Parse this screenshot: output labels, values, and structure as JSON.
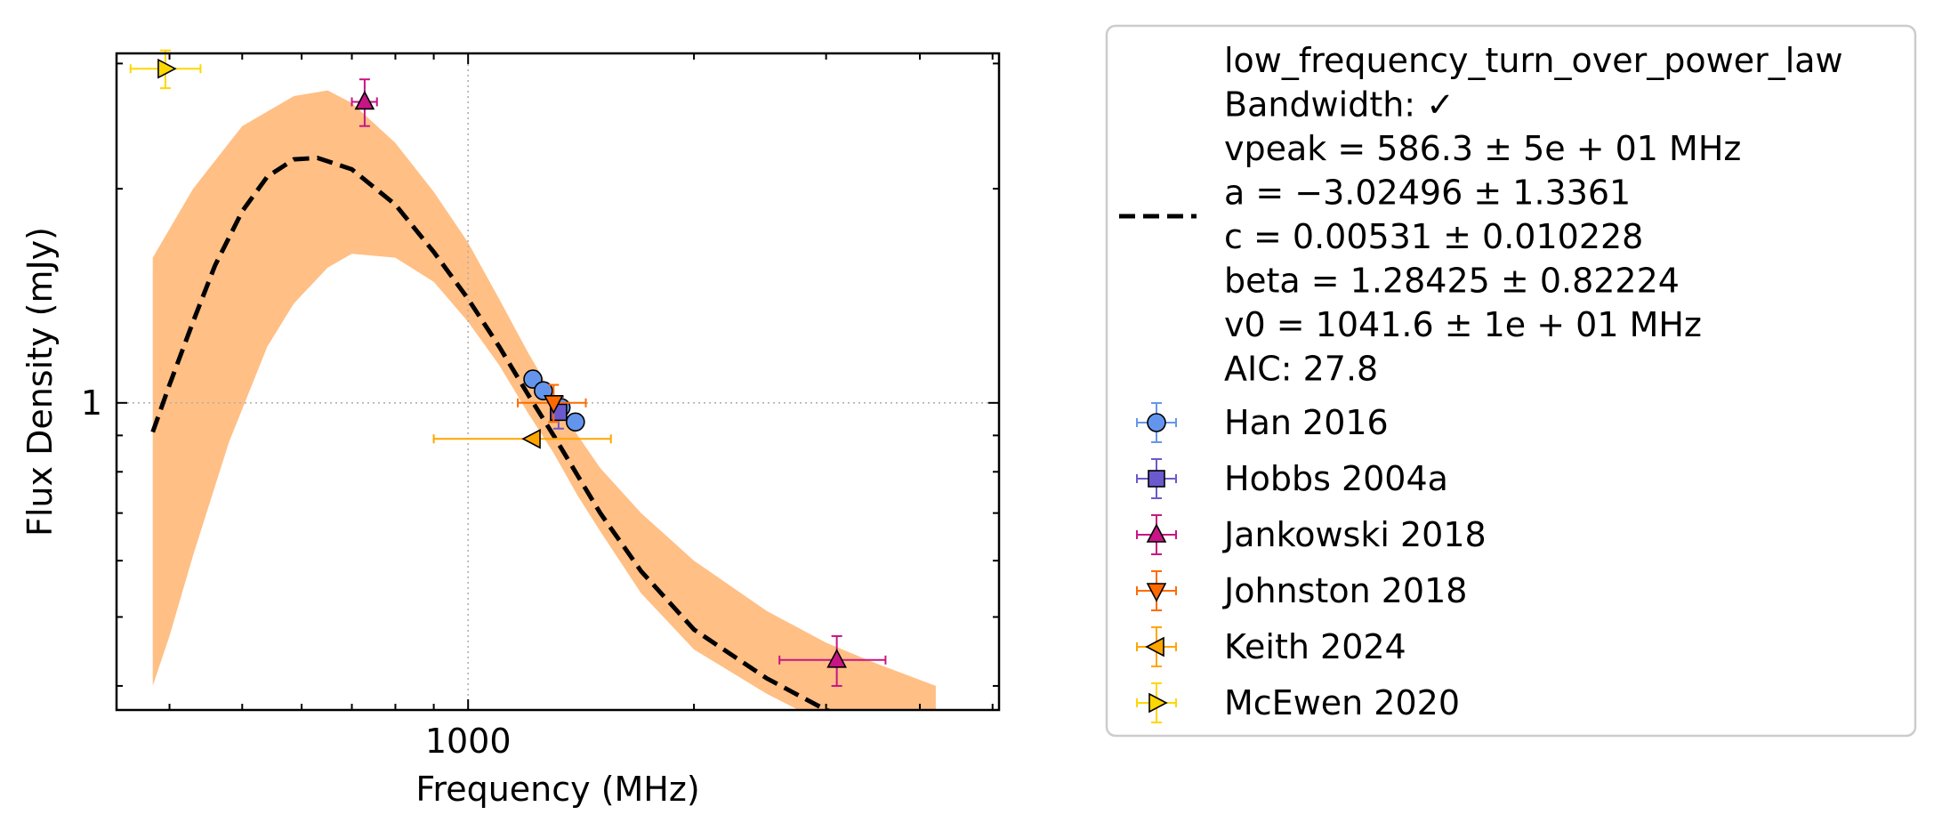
{
  "chart_data": {
    "type": "scatter",
    "xlabel": "Frequency (MHz)",
    "ylabel": "Flux Density (mJy)",
    "x_scale": "log",
    "y_scale": "log",
    "xlim": [
      340,
      5100
    ],
    "ylim": [
      0.37,
      3.1
    ],
    "x_tick_labels": [
      {
        "value": 1000,
        "label": "1000"
      }
    ],
    "y_tick_labels": [
      {
        "value": 1,
        "label": "1"
      }
    ],
    "grid": "dotted at labelled major ticks",
    "legend_position": "outside right",
    "fit": {
      "model": "low_frequency_turn_over_power_law",
      "legend_lines": [
        "low_frequency_turn_over_power_law",
        "Bandwidth: ✓",
        "vpeak = 586.3 ± 5e + 01 MHz",
        "a = −3.02496 ± 1.3361",
        "c = 0.00531 ± 0.010228",
        "beta = 1.28425 ± 0.82224",
        "v0 = 1041.6 ± 1e + 01 MHz",
        "AIC: 27.8"
      ],
      "curve": [
        [
          380,
          0.91
        ],
        [
          400,
          1.06
        ],
        [
          430,
          1.3
        ],
        [
          460,
          1.56
        ],
        [
          500,
          1.86
        ],
        [
          540,
          2.08
        ],
        [
          586,
          2.2
        ],
        [
          630,
          2.21
        ],
        [
          700,
          2.13
        ],
        [
          800,
          1.9
        ],
        [
          900,
          1.63
        ],
        [
          1000,
          1.4
        ],
        [
          1100,
          1.2
        ],
        [
          1200,
          1.03
        ],
        [
          1300,
          0.9
        ],
        [
          1400,
          0.79
        ],
        [
          1500,
          0.7
        ],
        [
          1700,
          0.58
        ],
        [
          2000,
          0.48
        ],
        [
          2500,
          0.41
        ],
        [
          3000,
          0.37
        ],
        [
          3500,
          0.35
        ],
        [
          3800,
          0.34
        ]
      ],
      "band_upper": [
        [
          380,
          1.6
        ],
        [
          430,
          2.0
        ],
        [
          500,
          2.45
        ],
        [
          586,
          2.7
        ],
        [
          650,
          2.75
        ],
        [
          700,
          2.64
        ],
        [
          800,
          2.32
        ],
        [
          900,
          1.98
        ],
        [
          1000,
          1.68
        ],
        [
          1100,
          1.4
        ],
        [
          1200,
          1.18
        ],
        [
          1300,
          1.02
        ],
        [
          1400,
          0.9
        ],
        [
          1500,
          0.81
        ],
        [
          1700,
          0.7
        ],
        [
          2000,
          0.6
        ],
        [
          2500,
          0.51
        ],
        [
          3000,
          0.46
        ],
        [
          3500,
          0.43
        ],
        [
          4200,
          0.4
        ]
      ],
      "band_lower": [
        [
          380,
          0.4
        ],
        [
          400,
          0.47
        ],
        [
          430,
          0.61
        ],
        [
          480,
          0.88
        ],
        [
          540,
          1.2
        ],
        [
          586,
          1.38
        ],
        [
          650,
          1.55
        ],
        [
          700,
          1.62
        ],
        [
          800,
          1.6
        ],
        [
          900,
          1.48
        ],
        [
          1000,
          1.3
        ],
        [
          1100,
          1.13
        ],
        [
          1200,
          0.97
        ],
        [
          1300,
          0.85
        ],
        [
          1400,
          0.74
        ],
        [
          1500,
          0.66
        ],
        [
          1700,
          0.54
        ],
        [
          2000,
          0.45
        ],
        [
          2500,
          0.39
        ],
        [
          2900,
          0.36
        ],
        [
          3300,
          0.34
        ]
      ],
      "line_color": "#000000",
      "band_color": "#ffbf85"
    },
    "series": [
      {
        "name": "Han 2016",
        "marker": "circle",
        "color": "#6495ed",
        "err_color": "#6495ed",
        "points": [
          {
            "x": 1220,
            "y": 1.08,
            "xerr": 0,
            "yerr": 0.02
          },
          {
            "x": 1260,
            "y": 1.04,
            "xerr": 0,
            "yerr": 0.02
          },
          {
            "x": 1330,
            "y": 0.985,
            "xerr": 0,
            "yerr": 0.02
          },
          {
            "x": 1390,
            "y": 0.94,
            "xerr": 0,
            "yerr": 0.02
          }
        ]
      },
      {
        "name": "Hobbs 2004a",
        "marker": "square",
        "color": "#6a5acd",
        "err_color": "#6a5acd",
        "points": [
          {
            "x": 1320,
            "y": 0.97,
            "xerr": 0,
            "yerr": 0.05
          }
        ]
      },
      {
        "name": "Jankowski 2018",
        "marker": "triangle-up",
        "color": "#c71585",
        "err_color": "#c71585",
        "points": [
          {
            "x": 728,
            "y": 2.65,
            "xerr": 28,
            "yerr": 0.2
          },
          {
            "x": 3100,
            "y": 0.435,
            "xerr": 500,
            "yerr": 0.035
          }
        ]
      },
      {
        "name": "Johnston 2018",
        "marker": "triangle-down",
        "color": "#ff6a00",
        "err_color": "#ff6a00",
        "points": [
          {
            "x": 1300,
            "y": 1.0,
            "xerr": 135,
            "yerr": 0.06
          }
        ]
      },
      {
        "name": "Keith 2024",
        "marker": "triangle-left",
        "color": "#ffa500",
        "err_color": "#ffa500",
        "points": [
          {
            "x": 1220,
            "y": 0.89,
            "xerr": [
              320,
              330
            ],
            "yerr": 0
          }
        ]
      },
      {
        "name": "McEwen 2020",
        "marker": "triangle-right",
        "color": "#ffd700",
        "err_color": "#ffd700",
        "points": [
          {
            "x": 395,
            "y": 2.95,
            "xerr": [
              40,
              45
            ],
            "yerr": 0.18
          }
        ]
      }
    ]
  }
}
